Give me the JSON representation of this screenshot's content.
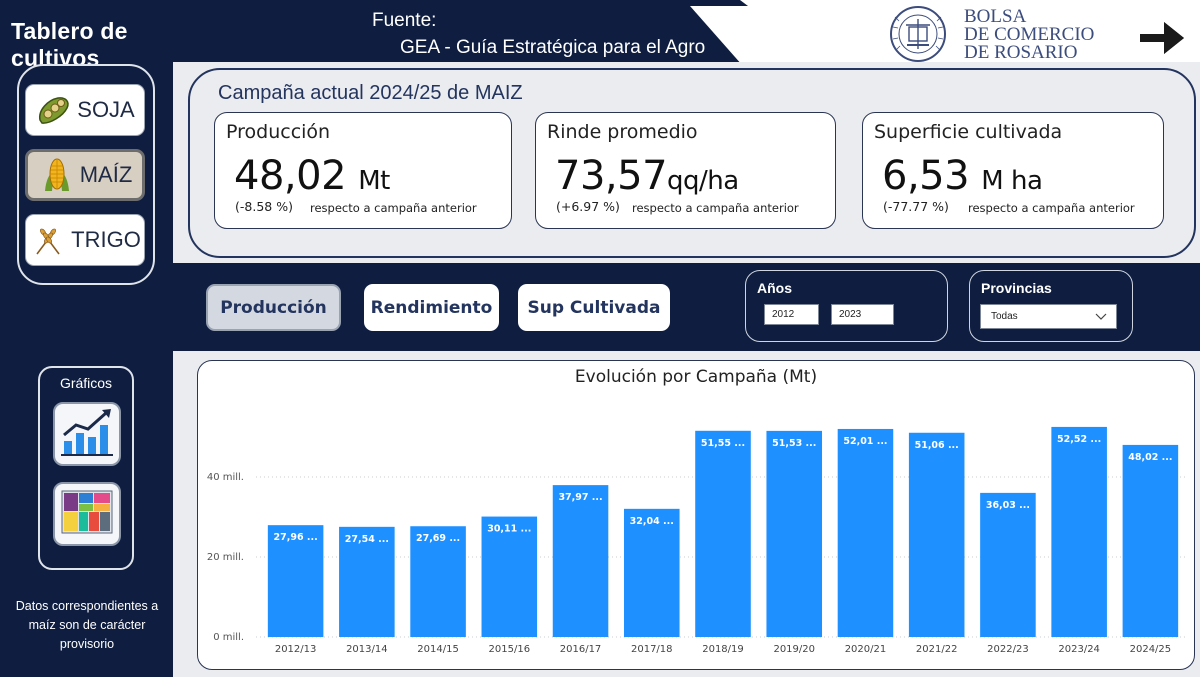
{
  "app": {
    "title": "Tablero de cultivos"
  },
  "header": {
    "source_label": "Fuente:",
    "source_text": "GEA -  Guía Estratégica para el Agro",
    "org_line1": "BOLSA",
    "org_line2": "DE COMERCIO",
    "org_line3": "DE ROSARIO",
    "seal_text": "BOLSA DE COMERCIO DE ROSARIO",
    "next_icon": "arrow-right-icon"
  },
  "sidebar": {
    "crops": [
      {
        "label": "SOJA",
        "icon": "soybean-icon",
        "active": false
      },
      {
        "label": "MAÍZ",
        "icon": "corn-icon",
        "active": true
      },
      {
        "label": "TRIGO",
        "icon": "wheat-icon",
        "active": false
      }
    ],
    "graphs_label": "Gráficos",
    "graph_buttons": [
      {
        "icon": "line-chart-icon"
      },
      {
        "icon": "treemap-icon"
      }
    ],
    "footnote": "Datos correspondientes a maíz son de carácter provisorio"
  },
  "kpis": {
    "campaign_title": "Campaña actual 2024/25 de MAIZ",
    "cards": [
      {
        "label": "Producción",
        "value": "48,02",
        "unit": "Mt",
        "change": "(-8.58 %)",
        "ref": "respecto a campaña anterior"
      },
      {
        "label": "Rinde promedio",
        "value": "73,57",
        "unit": "qq/ha",
        "change": "(+6.97 %)",
        "ref": "respecto a campaña anterior"
      },
      {
        "label": "Superficie cultivada",
        "value": "6,53",
        "unit": "M ha",
        "change": "(-77.77 %)",
        "ref": "respecto a campaña anterior"
      }
    ]
  },
  "metric_buttons": [
    {
      "label": "Producción",
      "active": true
    },
    {
      "label": "Rendimiento",
      "active": false
    },
    {
      "label": "Sup Cultivada",
      "active": false
    }
  ],
  "filters": {
    "years_title": "Años",
    "year_from": "2012",
    "year_to": "2023",
    "provinces_title": "Provincias",
    "province_selected": "Todas"
  },
  "colors": {
    "navy": "#0f1e40",
    "bar": "#1e90ff",
    "panel_gray": "#ebecef"
  },
  "chart_data": {
    "type": "bar",
    "title": "Evolución por Campaña (Mt)",
    "xlabel": "",
    "ylabel": "",
    "categories": [
      "2012/13",
      "2013/14",
      "2014/15",
      "2015/16",
      "2016/17",
      "2017/18",
      "2018/19",
      "2019/20",
      "2020/21",
      "2021/22",
      "2022/23",
      "2023/24",
      "2024/25"
    ],
    "values": [
      27.96,
      27.54,
      27.69,
      30.11,
      37.97,
      32.04,
      51.55,
      51.53,
      52.01,
      51.06,
      36.03,
      52.52,
      48.02
    ],
    "data_labels": [
      "27,96 ...",
      "27,54 ...",
      "27,69 ...",
      "30,11 ...",
      "37,97 ...",
      "32,04 ...",
      "51,55 ...",
      "51,53 ...",
      "52,01 ...",
      "51,06 ...",
      "36,03 ...",
      "52,52 ...",
      "48,02 ..."
    ],
    "yticks": [
      0,
      20,
      40
    ],
    "ytick_labels": [
      "0 mill.",
      "20 mill.",
      "40 mill."
    ],
    "ylim": [
      0,
      54
    ],
    "grid": true,
    "legend": "none"
  }
}
